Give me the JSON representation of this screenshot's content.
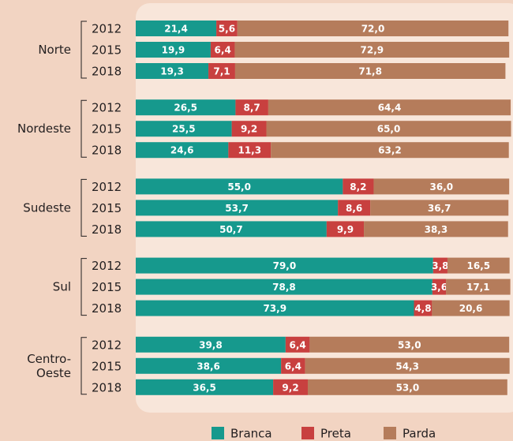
{
  "chart_data": {
    "type": "stacked_barh",
    "groups": [
      [
        "Norte"
      ],
      [
        "Nordeste"
      ],
      [
        "Sudeste"
      ],
      [
        "Sul"
      ],
      [
        "Centro-",
        "Oeste"
      ]
    ],
    "categories": [
      "2012",
      "2015",
      "2018",
      "2012",
      "2015",
      "2018",
      "2012",
      "2015",
      "2018",
      "2012",
      "2015",
      "2018",
      "2012",
      "2015",
      "2018"
    ],
    "xlim": [
      0,
      100
    ],
    "series": [
      {
        "name": "Branca",
        "color": "#16998d",
        "values": [
          21.4,
          19.9,
          19.3,
          26.5,
          25.5,
          24.6,
          55.0,
          53.7,
          50.7,
          79.0,
          78.8,
          73.9,
          39.8,
          38.6,
          36.5
        ],
        "value_labels": [
          "21,4",
          "19,9",
          "19,3",
          "26,5",
          "25,5",
          "24,6",
          "55,0",
          "53,7",
          "50,7",
          "79,0",
          "78,8",
          "73,9",
          "39,8",
          "38,6",
          "36,5"
        ]
      },
      {
        "name": "Preta",
        "color": "#c8403f",
        "values": [
          5.6,
          6.4,
          7.1,
          8.7,
          9.2,
          11.3,
          8.2,
          8.6,
          9.9,
          3.8,
          3.6,
          4.8,
          6.4,
          6.4,
          9.2
        ],
        "value_labels": [
          "5,6",
          "6,4",
          "7,1",
          "8,7",
          "9,2",
          "11,3",
          "8,2",
          "8,6",
          "9,9",
          "3,8",
          "3,6",
          "4,8",
          "6,4",
          "6,4",
          "9,2"
        ]
      },
      {
        "name": "Parda",
        "color": "#b57c5b",
        "values": [
          72.0,
          72.9,
          71.8,
          64.4,
          65.0,
          63.2,
          36.0,
          36.7,
          38.3,
          16.5,
          17.1,
          20.6,
          53.0,
          54.3,
          53.0
        ],
        "value_labels": [
          "72,0",
          "72,9",
          "71,8",
          "64,4",
          "65,0",
          "63,2",
          "36,0",
          "36,7",
          "38,3",
          "16,5",
          "17,1",
          "20,6",
          "53,0",
          "54,3",
          "53,0"
        ]
      }
    ]
  }
}
